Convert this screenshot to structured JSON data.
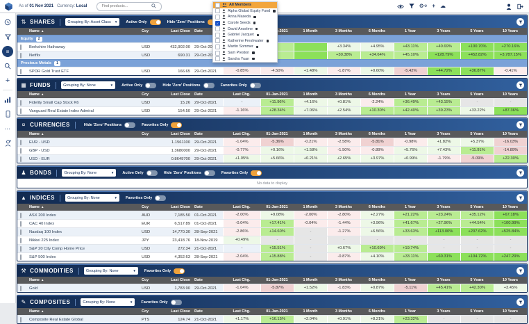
{
  "topbar": {
    "as_of_label": "As of",
    "as_of_date": "01 Nov 2021",
    "currency_label": "Currency:",
    "currency_value": "Local",
    "search_placeholder": "Find products...",
    "left_icons": [
      "eye",
      "filter",
      "settings",
      "add",
      "sync-cloud"
    ],
    "right_icons": [
      "user",
      "sign-out"
    ]
  },
  "sidebar": {
    "items": [
      "history",
      "filter",
      "watchlist",
      "search",
      "add",
      "analytics",
      "mobile",
      "more",
      "contacts"
    ],
    "active_item": "watchlist"
  },
  "member_menu": {
    "items": [
      {
        "label": "All Members",
        "checked": false,
        "highlighted": true,
        "icon": "people",
        "locked": false
      },
      {
        "label": "Alpha Global Equity Fund",
        "checked": false,
        "highlighted": false,
        "icon": "person",
        "locked": true
      },
      {
        "label": "Anna Maseda",
        "checked": false,
        "highlighted": false,
        "icon": "person",
        "locked": true
      },
      {
        "label": "Carole Seeds",
        "checked": true,
        "highlighted": false,
        "icon": "person",
        "locked": true
      },
      {
        "label": "David Ancelme",
        "checked": false,
        "highlighted": false,
        "icon": "person",
        "locked": true
      },
      {
        "label": "Gabriel Jacquet",
        "checked": false,
        "highlighted": false,
        "icon": "person",
        "locked": true
      },
      {
        "label": "Katherine Freshwater",
        "checked": false,
        "highlighted": false,
        "icon": "person",
        "locked": true
      },
      {
        "label": "Martin Sommer",
        "checked": false,
        "highlighted": false,
        "icon": "person",
        "locked": true
      },
      {
        "label": "Sam Preston",
        "checked": false,
        "highlighted": false,
        "icon": "person",
        "locked": true
      },
      {
        "label": "Sandra Yuan",
        "checked": false,
        "highlighted": false,
        "icon": "person",
        "locked": true
      }
    ]
  },
  "table_columns": [
    "Name",
    "Ccy",
    "Last Close",
    "Date",
    "Last Chg.",
    "01-Jan-2021",
    "1 Month",
    "3 Months",
    "6 Months",
    "1 Year",
    "3 Years",
    "5 Years",
    "10 Years"
  ],
  "empty_text": "No data to display",
  "colors": {
    "navy": "#16305c",
    "header_gradient_left": "#122a50",
    "header_gradient_right": "#31609e",
    "accent_orange": "#f0a23b",
    "group_blue": "#7ba2d8",
    "colhead_gray": "#58595b",
    "green_light": "#edf8e7",
    "green_mid": "#b9ec92",
    "green_strong": "#8ce05a",
    "red_light": "#fbecec",
    "red_mid": "#f0d2d2",
    "dash_gray": "#e6e6e6"
  },
  "sections": [
    {
      "title": "SHARES",
      "icon": "shares-icon",
      "icon_glyph": "⇅",
      "grouping": "Grouping By: Asset Class",
      "toggles": [
        {
          "label": "Active Only",
          "on": true
        },
        {
          "label": "Hide 'Zero' Positions",
          "on": true
        },
        {
          "label": "Favorites Only",
          "on": true
        }
      ],
      "groups": [
        {
          "label": "Equity",
          "count": "2",
          "rows": [
            {
              "name": "Berkshire Hathaway",
              "ccy": "USD",
              "close": "432,902.00",
              "date": "29-Oct-2021",
              "perf": [
                [
                  "-0.77%",
                  "r1"
                ],
                [
                  "",
                  "g2"
                ],
                [
                  "",
                  "g3"
                ],
                [
                  "+3.34%",
                  "g1"
                ],
                [
                  "+4.95%",
                  "g1"
                ],
                [
                  "+43.11%",
                  "g2"
                ],
                [
                  "+40.69%",
                  "g2"
                ],
                [
                  "+100.70%",
                  "g3"
                ],
                [
                  "+270.16%",
                  "g3"
                ]
              ]
            },
            {
              "name": "Netflix",
              "ccy": "USD",
              "close": "690.31",
              "date": "29-Oct-2021",
              "perf": [
                [
                  "+2.41%",
                  "g1"
                ],
                [
                  "",
                  "g2"
                ],
                [
                  "",
                  "g3"
                ],
                [
                  "+30.38%",
                  "g2"
                ],
                [
                  "+34.64%",
                  "g2"
                ],
                [
                  "+45.10%",
                  "g2"
                ],
                [
                  "+128.79%",
                  "g3"
                ],
                [
                  "+452.82%",
                  "g3"
                ],
                [
                  "+3,787.15%",
                  "g3"
                ]
              ]
            }
          ]
        },
        {
          "label": "Precious Metals",
          "count": "1",
          "rows": [
            {
              "name": "SPDR Gold Trust ETF",
              "ccy": "USD",
              "close": "166.65",
              "date": "29-Oct-2021",
              "perf": [
                [
                  "-0.85%",
                  "r1"
                ],
                [
                  "-4.50%",
                  "r1"
                ],
                [
                  "+1.48%",
                  "g1"
                ],
                [
                  "-1.87%",
                  "r1"
                ],
                [
                  "+0.60%",
                  "g1"
                ],
                [
                  "-5.42%",
                  "r2"
                ],
                [
                  "+44.72%",
                  "g3"
                ],
                [
                  "+36.87%",
                  "g3"
                ],
                [
                  "-0.41%",
                  "r1"
                ]
              ]
            }
          ]
        }
      ]
    },
    {
      "title": "FUNDS",
      "icon": "funds-icon",
      "icon_glyph": "▦",
      "grouping": "Grouping By: None",
      "toggles": [
        {
          "label": "Active Only",
          "on": false
        },
        {
          "label": "Hide 'Zero' Positions",
          "on": false
        },
        {
          "label": "Favorites Only",
          "on": false
        }
      ],
      "rows": [
        {
          "name": "Fidelity Small Cap Stock K6",
          "ccy": "USD",
          "close": "15.26",
          "date": "29-Oct-2021",
          "perf": [
            [
              "-",
              "w"
            ],
            [
              "+11.96%",
              "g2"
            ],
            [
              "+4.16%",
              "g1"
            ],
            [
              "+0.81%",
              "g1"
            ],
            [
              "-2.24%",
              "r1"
            ],
            [
              "+36.49%",
              "g2"
            ],
            [
              "+43.15%",
              "g2"
            ],
            [
              "-",
              "n"
            ],
            [
              "-",
              "n"
            ]
          ]
        },
        {
          "name": "Vanguard Real Estate Index Admiral",
          "ccy": "USD",
          "close": "154.50",
          "date": "29-Oct-2021",
          "perf": [
            [
              "-1.16%",
              "r1"
            ],
            [
              "+28.34%",
              "g2"
            ],
            [
              "+7.06%",
              "g1"
            ],
            [
              "+2.54%",
              "g1"
            ],
            [
              "+10.30%",
              "g2"
            ],
            [
              "+42.40%",
              "g2"
            ],
            [
              "+39.23%",
              "g2"
            ],
            [
              "+33.22%",
              "g1"
            ],
            [
              "+87.36%",
              "g3"
            ]
          ]
        }
      ]
    },
    {
      "title": "CURRENCIES",
      "icon": "currencies-icon",
      "icon_glyph": "¤",
      "grouping": null,
      "toggles": [
        {
          "label": "Hide 'Zero' Positions",
          "on": false
        },
        {
          "label": "Favorites Only",
          "on": true
        }
      ],
      "rows": [
        {
          "name": "EUR - USD",
          "ccy": "",
          "close": "1.1561100",
          "date": "29-Oct-2021",
          "perf": [
            [
              "-1.04%",
              "r1"
            ],
            [
              "-5.36%",
              "r2"
            ],
            [
              "-0.21%",
              "r1"
            ],
            [
              "-2.58%",
              "r1"
            ],
            [
              "-5.81%",
              "r2"
            ],
            [
              "-0.98%",
              "r1"
            ],
            [
              "+1.82%",
              "g1"
            ],
            [
              "+5.37%",
              "g1"
            ],
            [
              "-16.03%",
              "r2"
            ]
          ]
        },
        {
          "name": "GBP - USD",
          "ccy": "",
          "close": "1.3680000",
          "date": "29-Oct-2021",
          "perf": [
            [
              "-0.77%",
              "r1"
            ],
            [
              "+0.16%",
              "g1"
            ],
            [
              "+1.58%",
              "g1"
            ],
            [
              "-1.50%",
              "r1"
            ],
            [
              "-0.89%",
              "r1"
            ],
            [
              "+5.76%",
              "g1"
            ],
            [
              "+7.43%",
              "g1"
            ],
            [
              "+11.91%",
              "g2"
            ],
            [
              "-14.89%",
              "r2"
            ]
          ]
        },
        {
          "name": "USD - EUR",
          "ccy": "",
          "close": "0.8649700",
          "date": "29-Oct-2021",
          "perf": [
            [
              "+1.05%",
              "g1"
            ],
            [
              "+5.66%",
              "g1"
            ],
            [
              "+0.21%",
              "g1"
            ],
            [
              "+2.65%",
              "g1"
            ],
            [
              "+3.97%",
              "g1"
            ],
            [
              "+0.99%",
              "g1"
            ],
            [
              "-1.79%",
              "r1"
            ],
            [
              "-5.09%",
              "r2"
            ],
            [
              "+22.30%",
              "g2"
            ]
          ]
        }
      ]
    },
    {
      "title": "BONDS",
      "icon": "bonds-icon",
      "icon_glyph": "♟",
      "grouping": "Grouping By: None",
      "toggles": [
        {
          "label": "Active Only",
          "on": false
        },
        {
          "label": "Hide 'Zero' Positions",
          "on": false
        },
        {
          "label": "Favorites Only",
          "on": true
        }
      ],
      "empty": true,
      "rows": []
    },
    {
      "title": "INDICES",
      "icon": "indices-icon",
      "icon_glyph": "▲",
      "grouping": "Grouping By: None",
      "toggles": [
        {
          "label": "Favorites Only",
          "on": false
        }
      ],
      "rows": [
        {
          "name": "ASX 200 Index",
          "ccy": "AUD",
          "close": "7,185.50",
          "date": "01-Oct-2021",
          "perf": [
            [
              "-2.00%",
              "r1"
            ],
            [
              "+9.08%",
              "g1"
            ],
            [
              "-2.00%",
              "r1"
            ],
            [
              "-2.80%",
              "r1"
            ],
            [
              "+2.27%",
              "g1"
            ],
            [
              "+21.22%",
              "g2"
            ],
            [
              "+23.24%",
              "g2"
            ],
            [
              "+35.12%",
              "g2"
            ],
            [
              "+67.18%",
              "g3"
            ]
          ]
        },
        {
          "name": "CAC 40 Index",
          "ccy": "EUR",
          "close": "6,517.89",
          "date": "01-Oct-2021",
          "perf": [
            [
              "-0.04%",
              "r1"
            ],
            [
              "+17.41%",
              "g2"
            ],
            [
              "-0.04%",
              "r1"
            ],
            [
              "-1.44%",
              "r1"
            ],
            [
              "+3.96%",
              "g1"
            ],
            [
              "+41.67%",
              "g2"
            ],
            [
              "+27.96%",
              "g2"
            ],
            [
              "+44.54%",
              "g2"
            ],
            [
              "+100.99%",
              "g3"
            ]
          ]
        },
        {
          "name": "Nasdaq 100 Index",
          "ccy": "USD",
          "close": "14,770.30",
          "date": "28-Sep-2021",
          "perf": [
            [
              "-2.86%",
              "r1"
            ],
            [
              "+14.60%",
              "g2"
            ],
            [
              "-",
              "n"
            ],
            [
              "-1.27%",
              "r1"
            ],
            [
              "+6.56%",
              "g1"
            ],
            [
              "+33.63%",
              "g2"
            ],
            [
              "+113.00%",
              "g3"
            ],
            [
              "+207.62%",
              "g3"
            ],
            [
              "+525.84%",
              "g3"
            ]
          ]
        },
        {
          "name": "Nikkei 225 Index",
          "ccy": "JPY",
          "close": "23,418.76",
          "date": "18-Nov-2019",
          "perf": [
            [
              "+0.49%",
              "g1"
            ],
            [
              "-",
              "n"
            ],
            [
              "-",
              "n"
            ],
            [
              "-",
              "n"
            ],
            [
              "-",
              "n"
            ],
            [
              "-",
              "n"
            ],
            [
              "-",
              "n"
            ],
            [
              "-",
              "n"
            ],
            [
              "-",
              "n"
            ]
          ]
        },
        {
          "name": "S&P 20 City Comp Home Price",
          "ccy": "USD",
          "close": "272.34",
          "date": "21-Oct-2021",
          "perf": [
            [
              "-",
              "w"
            ],
            [
              "+15.51%",
              "g2"
            ],
            [
              "-",
              "n"
            ],
            [
              "+0.67%",
              "g1"
            ],
            [
              "+10.69%",
              "g2"
            ],
            [
              "+19.74%",
              "g2"
            ],
            [
              "-",
              "n"
            ],
            [
              "-",
              "n"
            ],
            [
              "-",
              "n"
            ]
          ]
        },
        {
          "name": "S&P 500 Index",
          "ccy": "USD",
          "close": "4,352.63",
          "date": "28-Sep-2021",
          "perf": [
            [
              "-2.04%",
              "r1"
            ],
            [
              "+15.88%",
              "g2"
            ],
            [
              "-",
              "n"
            ],
            [
              "-0.87%",
              "r1"
            ],
            [
              "+4.10%",
              "g1"
            ],
            [
              "+33.11%",
              "g2"
            ],
            [
              "+60.31%",
              "g3"
            ],
            [
              "+104.72%",
              "g3"
            ],
            [
              "+247.29%",
              "g3"
            ]
          ]
        }
      ]
    },
    {
      "title": "COMMODITIES",
      "icon": "commodities-icon",
      "icon_glyph": "⚒",
      "grouping": "Grouping By: None",
      "toggles": [
        {
          "label": "Favorites Only",
          "on": true
        }
      ],
      "rows": [
        {
          "name": "Gold",
          "ccy": "USD",
          "close": "1,783.90",
          "date": "29-Oct-2021",
          "perf": [
            [
              "-1.04%",
              "r1"
            ],
            [
              "-5.87%",
              "r2"
            ],
            [
              "+1.52%",
              "g1"
            ],
            [
              "-1.83%",
              "r1"
            ],
            [
              "+0.87%",
              "g1"
            ],
            [
              "-5.11%",
              "r2"
            ],
            [
              "+45.41%",
              "g2"
            ],
            [
              "+42.30%",
              "g2"
            ],
            [
              "+3.45%",
              "g1"
            ]
          ]
        }
      ]
    },
    {
      "title": "COMPOSITES",
      "icon": "composites-icon",
      "icon_glyph": "✎",
      "grouping": "Grouping By: None",
      "toggles": [
        {
          "label": "Favorites Only",
          "on": false
        }
      ],
      "rows": [
        {
          "name": "Composite Real Estate Global",
          "ccy": "PTS",
          "close": "124.74",
          "date": "21-Oct-2021",
          "perf": [
            [
              "+1.17%",
              "g1"
            ],
            [
              "+16.15%",
              "g2"
            ],
            [
              "+2.04%",
              "g1"
            ],
            [
              "+0.91%",
              "g1"
            ],
            [
              "+8.21%",
              "g1"
            ],
            [
              "+23.32%",
              "g2"
            ],
            [
              "-",
              "n"
            ],
            [
              "-",
              "n"
            ],
            [
              "-",
              "n"
            ]
          ]
        }
      ]
    }
  ]
}
